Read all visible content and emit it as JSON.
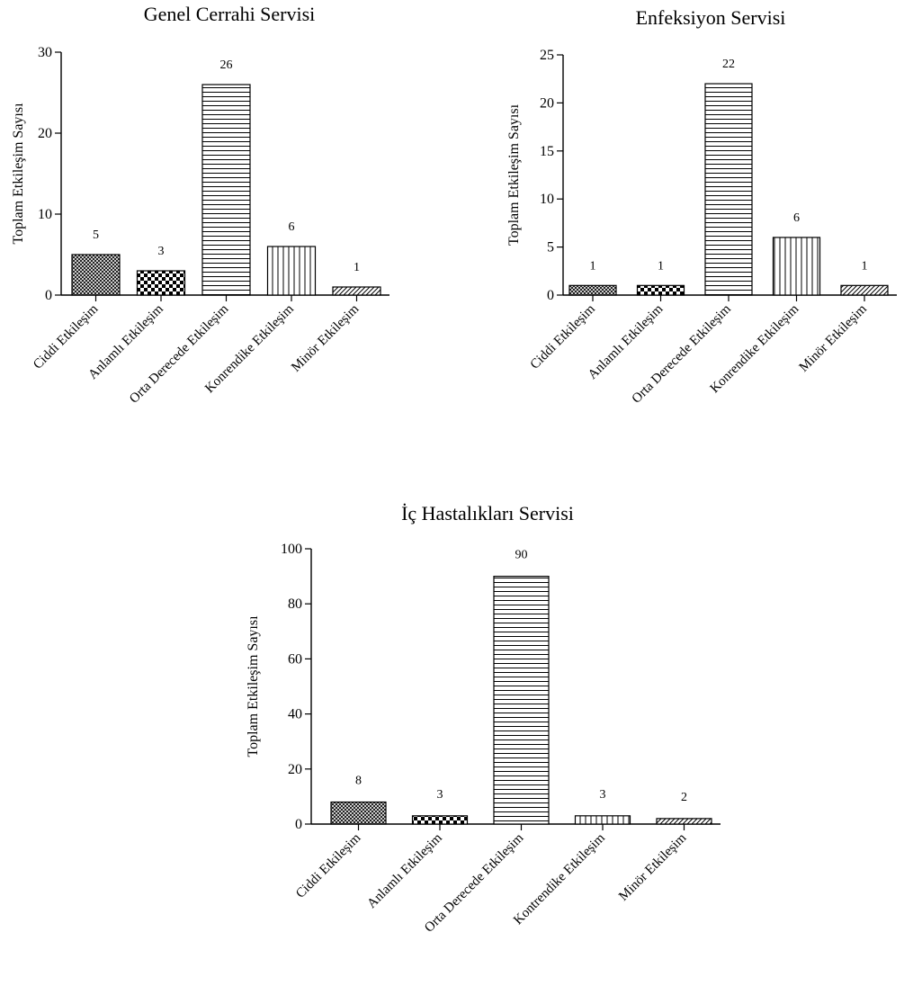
{
  "chart_data": [
    {
      "type": "bar",
      "title": "Genel Cerrahi Servisi",
      "ylabel": "Toplam Etkileşim Sayısı",
      "xlabel": "",
      "categories": [
        "Ciddi Etkileşim",
        "Anlamlı Etkileşim",
        "Orta Derecede Etkileşim",
        "Konrendike Etkileşim",
        "Minör Etkileşim"
      ],
      "values": [
        5,
        3,
        26,
        6,
        1
      ],
      "data_labels": [
        "5",
        "3",
        "26",
        "6",
        "1"
      ],
      "ylim": [
        0,
        30
      ],
      "yticks": [
        0,
        10,
        20,
        30
      ],
      "ytick_labels": [
        "0",
        "10",
        "20",
        "30"
      ],
      "grid": false,
      "legend": "none"
    },
    {
      "type": "bar",
      "title": "Enfeksiyon Servisi",
      "ylabel": "Toplam Etkileşim Sayısı",
      "xlabel": "",
      "categories": [
        "Ciddi Etkileşim",
        "Anlamlı Etkileşim",
        "Orta Derecede Etkileşim",
        "Konrendike Etkileşim",
        "Minör Etkileşim"
      ],
      "values": [
        1,
        1,
        22,
        6,
        1
      ],
      "data_labels": [
        "1",
        "1",
        "22",
        "6",
        "1"
      ],
      "ylim": [
        0,
        25
      ],
      "yticks": [
        0,
        5,
        10,
        15,
        20,
        25
      ],
      "ytick_labels": [
        "0",
        "5",
        "10",
        "15",
        "20",
        "25"
      ],
      "grid": false,
      "legend": "none"
    },
    {
      "type": "bar",
      "title": "İç Hastalıkları Servisi",
      "ylabel": "Toplam Etkileşim Sayısı",
      "xlabel": "",
      "categories": [
        "Ciddi Etkileşim",
        "Anlamlı Etkileşim",
        "Orta Derecede Etkileşim",
        "Kontrendike Etkileşim",
        "Minör Etkileşim"
      ],
      "values": [
        8,
        3,
        90,
        3,
        2
      ],
      "data_labels": [
        "8",
        "3",
        "90",
        "3",
        "2"
      ],
      "ylim": [
        0,
        100
      ],
      "yticks": [
        0,
        20,
        40,
        60,
        80,
        100
      ],
      "ytick_labels": [
        "0",
        "20",
        "40",
        "60",
        "80",
        "100"
      ],
      "grid": false,
      "legend": "none"
    }
  ],
  "bar_patterns": [
    "crosshatch",
    "checkerboard",
    "horizontal-lines",
    "vertical-lines",
    "diagonal-lines"
  ],
  "colors": {
    "ink": "#000000",
    "background": "#ffffff"
  }
}
